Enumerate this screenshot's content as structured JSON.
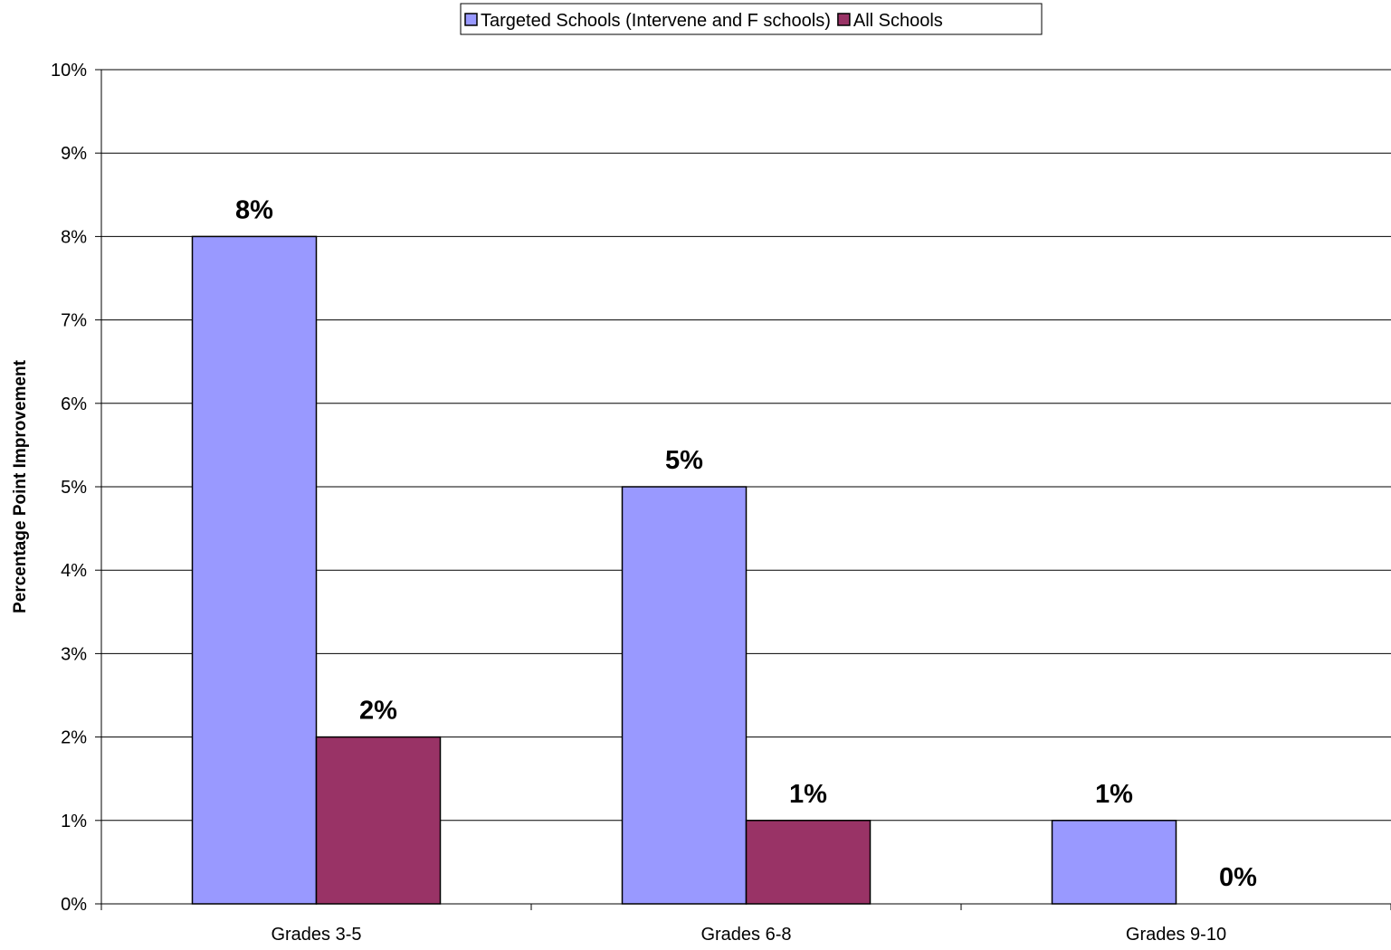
{
  "chart_data": {
    "type": "bar",
    "title": "",
    "xlabel": "",
    "ylabel": "Percentage Point Improvement",
    "categories": [
      "Grades 3-5",
      "Grades 6-8",
      "Grades 9-10"
    ],
    "series": [
      {
        "name": "Targeted Schools (Intervene and F schools)",
        "color": "#9999FF",
        "values": [
          8,
          5,
          1
        ],
        "labels": [
          "8%",
          "5%",
          "1%"
        ]
      },
      {
        "name": "All Schools",
        "color": "#993366",
        "values": [
          2,
          1,
          0
        ],
        "labels": [
          "2%",
          "1%",
          "0%"
        ]
      }
    ],
    "ylim": [
      0,
      10
    ],
    "yticks": [
      0,
      1,
      2,
      3,
      4,
      5,
      6,
      7,
      8,
      9,
      10
    ],
    "ytick_labels": [
      "0%",
      "1%",
      "2%",
      "3%",
      "4%",
      "5%",
      "6%",
      "7%",
      "8%",
      "9%",
      "10%"
    ],
    "grid": true,
    "legend_position": "top-center"
  }
}
